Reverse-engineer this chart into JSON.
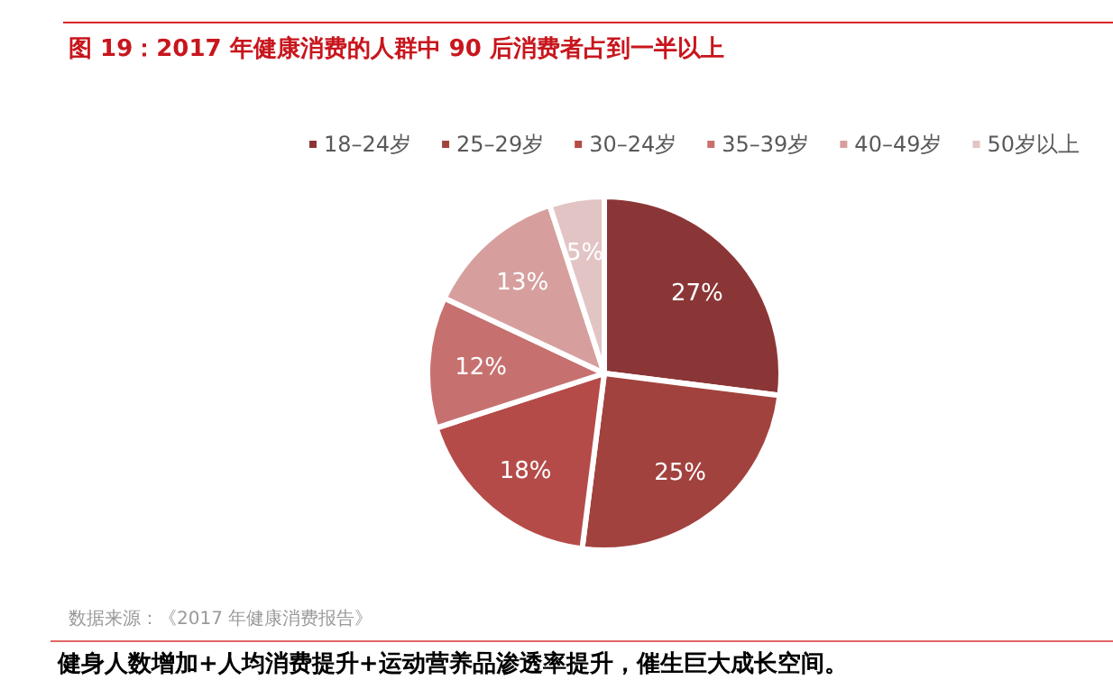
{
  "chart_data": {
    "type": "pie",
    "title": "图 19：2017 年健康消费的人群中 90 后消费者占到一半以上",
    "categories": [
      "18–24岁",
      "25–29岁",
      "30–24岁",
      "35–39岁",
      "40–49岁",
      "50岁以上"
    ],
    "values": [
      27,
      25,
      18,
      12,
      13,
      5
    ],
    "colors": [
      "#8b3636",
      "#a1423e",
      "#b54b48",
      "#c6716f",
      "#d69f9d",
      "#e3c4c4"
    ],
    "value_labels": [
      "27%",
      "25%",
      "18%",
      "12%",
      "13%",
      "5%"
    ],
    "legend": "top",
    "annotations": [
      "数据来源：《2017 年健康消费报告》",
      "健身人数增加+人均消费提升+运动营养品渗透率提升，催生巨大成长空间。"
    ]
  }
}
